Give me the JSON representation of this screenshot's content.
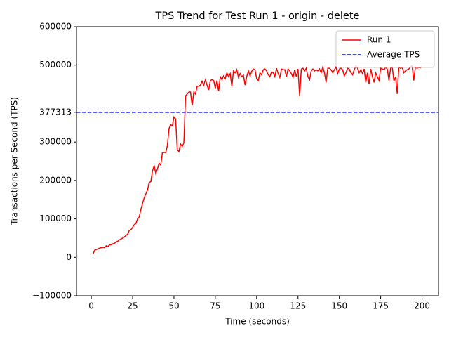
{
  "chart_data": {
    "type": "line",
    "title": "TPS Trend for Test Run 1 - origin - delete",
    "x_label": "Time (seconds)",
    "y_label": "Transactions per Second (TPS)",
    "xlim": [
      -8.95,
      209.95
    ],
    "ylim": [
      -100000,
      600000
    ],
    "xticks": [
      0,
      25,
      50,
      75,
      100,
      125,
      150,
      175,
      200
    ],
    "yticks": [
      {
        "value": -100000,
        "label": "−100000"
      },
      0,
      100000,
      200000,
      300000,
      377313,
      500000,
      600000
    ],
    "legend": "upper right",
    "series": [
      {
        "name": "Run 1",
        "color": "#ff0000",
        "x": [
          1,
          2,
          3,
          4,
          5,
          6,
          7,
          8,
          9,
          10,
          11,
          12,
          13,
          14,
          15,
          16,
          17,
          18,
          19,
          20,
          21,
          22,
          23,
          24,
          25,
          26,
          27,
          28,
          29,
          30,
          31,
          32,
          33,
          34,
          35,
          36,
          37,
          38,
          39,
          40,
          41,
          42,
          43,
          44,
          45,
          46,
          47,
          48,
          49,
          50,
          51,
          52,
          53,
          54,
          55,
          56,
          57,
          58,
          59,
          60,
          61,
          62,
          63,
          64,
          65,
          66,
          67,
          68,
          69,
          70,
          71,
          72,
          73,
          74,
          75,
          76,
          77,
          78,
          79,
          80,
          81,
          82,
          83,
          84,
          85,
          86,
          87,
          88,
          89,
          90,
          91,
          92,
          93,
          94,
          95,
          96,
          97,
          98,
          99,
          100,
          101,
          102,
          103,
          104,
          105,
          106,
          107,
          108,
          109,
          110,
          111,
          112,
          113,
          114,
          115,
          116,
          117,
          118,
          119,
          120,
          121,
          122,
          123,
          124,
          125,
          126,
          127,
          128,
          129,
          130,
          131,
          132,
          133,
          134,
          135,
          136,
          137,
          138,
          139,
          140,
          141,
          142,
          143,
          144,
          145,
          146,
          147,
          148,
          149,
          150,
          151,
          152,
          153,
          154,
          155,
          156,
          157,
          158,
          159,
          160,
          161,
          162,
          163,
          164,
          165,
          166,
          167,
          168,
          169,
          170,
          171,
          172,
          173,
          174,
          175,
          176,
          177,
          178,
          179,
          180,
          181,
          182,
          183,
          184,
          185,
          186,
          187,
          188,
          189,
          190,
          191,
          192,
          193,
          194,
          195,
          196,
          197,
          198,
          199,
          200
        ],
        "values": [
          8000,
          18000,
          20000,
          22000,
          24000,
          25000,
          26000,
          25000,
          30000,
          28000,
          32000,
          33000,
          35000,
          36000,
          40000,
          42000,
          45000,
          48000,
          50000,
          53000,
          57000,
          60000,
          70000,
          72000,
          78000,
          85000,
          88000,
          100000,
          105000,
          125000,
          140000,
          155000,
          165000,
          175000,
          195000,
          197000,
          225000,
          238000,
          218000,
          230000,
          245000,
          240000,
          272000,
          273000,
          272000,
          290000,
          335000,
          345000,
          342000,
          365000,
          360000,
          280000,
          275000,
          295000,
          288000,
          298000,
          420000,
          425000,
          430000,
          430000,
          395000,
          430000,
          425000,
          445000,
          445000,
          448000,
          458000,
          448000,
          462000,
          448000,
          435000,
          460000,
          462000,
          460000,
          440000,
          460000,
          432000,
          470000,
          462000,
          472000,
          465000,
          480000,
          470000,
          478000,
          445000,
          485000,
          480000,
          488000,
          468000,
          478000,
          470000,
          474000,
          448000,
          470000,
          485000,
          472000,
          484000,
          490000,
          488000,
          465000,
          460000,
          480000,
          475000,
          488000,
          490000,
          485000,
          475000,
          470000,
          482000,
          480000,
          470000,
          492000,
          478000,
          468000,
          490000,
          488000,
          488000,
          470000,
          490000,
          485000,
          478000,
          468000,
          488000,
          470000,
          490000,
          420000,
          490000,
          492000,
          485000,
          492000,
          470000,
          462000,
          485000,
          490000,
          485000,
          488000,
          485000,
          490000,
          480000,
          495000,
          480000,
          455000,
          492000,
          492000,
          488000,
          480000,
          488000,
          495000,
          478000,
          490000,
          492000,
          488000,
          472000,
          480000,
          492000,
          490000,
          480000,
          475000,
          488000,
          498000,
          492000,
          480000,
          488000,
          478000,
          490000,
          455000,
          480000,
          450000,
          490000,
          470000,
          455000,
          480000,
          470000,
          460000,
          492000,
          490000,
          488000,
          494000,
          490000,
          460000,
          492000,
          495000,
          458000,
          470000,
          425000,
          495000,
          492000,
          494000,
          480000,
          485000,
          488000,
          490000,
          495000,
          498000,
          460000,
          495000,
          492000,
          494000,
          493000,
          496000
        ]
      }
    ],
    "hlines": [
      {
        "name": "Average TPS",
        "value": 377313,
        "color": "#0000ff"
      }
    ]
  }
}
